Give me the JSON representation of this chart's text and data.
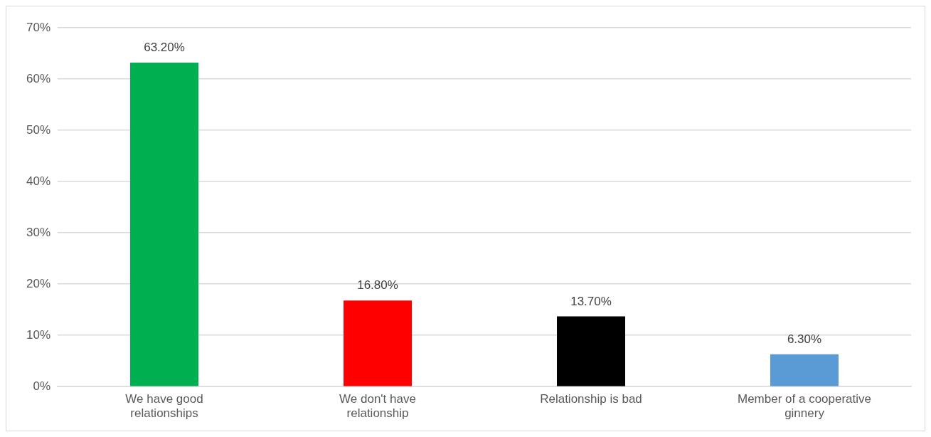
{
  "chart_data": {
    "type": "bar",
    "categories": [
      "We have good relationships",
      "We don't have relationship",
      "Relationship is bad",
      "Member of a cooperative ginnery"
    ],
    "values": [
      63.2,
      16.8,
      13.7,
      6.3
    ],
    "colors": [
      "#00b050",
      "#ff0000",
      "#000000",
      "#5b9bd5"
    ],
    "value_labels": [
      "63.20%",
      "16.80%",
      "13.70%",
      "6.30%"
    ],
    "ylim": [
      0,
      70
    ],
    "yticks": [
      {
        "value": 0,
        "label": "0%"
      },
      {
        "value": 10,
        "label": "10%"
      },
      {
        "value": 20,
        "label": "20%"
      },
      {
        "value": 30,
        "label": "30%"
      },
      {
        "value": 40,
        "label": "40%"
      },
      {
        "value": 50,
        "label": "50%"
      },
      {
        "value": 60,
        "label": "60%"
      },
      {
        "value": 70,
        "label": "70%"
      }
    ],
    "grid": "y",
    "legend": false
  }
}
